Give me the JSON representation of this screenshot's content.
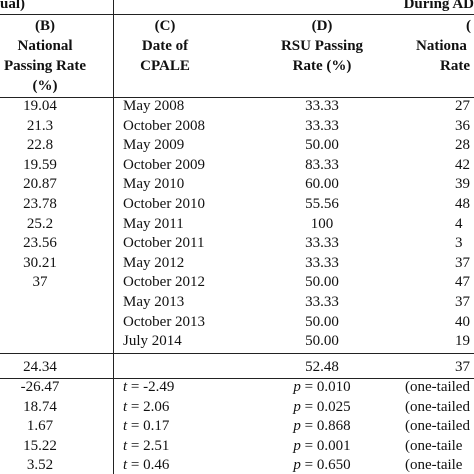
{
  "header": {
    "left": "ual)",
    "right": "During AD"
  },
  "columns": [
    {
      "label": "(B)",
      "lines": [
        "National",
        "Passing Rate",
        "(%)"
      ]
    },
    {
      "label": "(C)",
      "lines": [
        "Date of",
        "CPALE"
      ]
    },
    {
      "label": "(D)",
      "lines": [
        "RSU Passing",
        "Rate (%)"
      ]
    },
    {
      "label": "(",
      "lines": [
        "Nationa",
        "Rate"
      ]
    }
  ],
  "national_rates_b": [
    "19.04",
    "21.3",
    "22.8",
    "19.59",
    "20.87",
    "23.78",
    "25.2",
    "23.56",
    "30.21",
    "37"
  ],
  "exam_rows": [
    [
      "May 2008",
      "33.33",
      "27"
    ],
    [
      "October 2008",
      "33.33",
      "36"
    ],
    [
      "May 2009",
      "50.00",
      "28"
    ],
    [
      "October 2009",
      "83.33",
      "42"
    ],
    [
      "May 2010",
      "60.00",
      "39"
    ],
    [
      "October 2010",
      "55.56",
      "48"
    ],
    [
      "May 2011",
      "100",
      "4"
    ],
    [
      "October 2011",
      "33.33",
      "3"
    ],
    [
      "May 2012",
      "33.33",
      "37"
    ],
    [
      "October 2012",
      "50.00",
      "47"
    ],
    [
      "May 2013",
      "33.33",
      "37"
    ],
    [
      "October 2013",
      "50.00",
      "40"
    ],
    [
      "July 2014",
      "50.00",
      "19"
    ]
  ],
  "summary": [
    "24.34",
    "52.48",
    "37"
  ],
  "tests": [
    [
      "-26.47",
      "t = -2.49",
      "p = 0.010",
      "(one-tailed"
    ],
    [
      "18.74",
      "t = 2.06",
      "p = 0.025",
      "(one-tailed"
    ],
    [
      "1.67",
      "t = 0.17",
      "p = 0.868",
      "(one-tailed"
    ],
    [
      "15.22",
      "t = 2.51",
      "p = 0.001",
      "(one-taile"
    ],
    [
      "3.52",
      "t = 0.46",
      "p = 0.650",
      "(one-taile"
    ]
  ]
}
